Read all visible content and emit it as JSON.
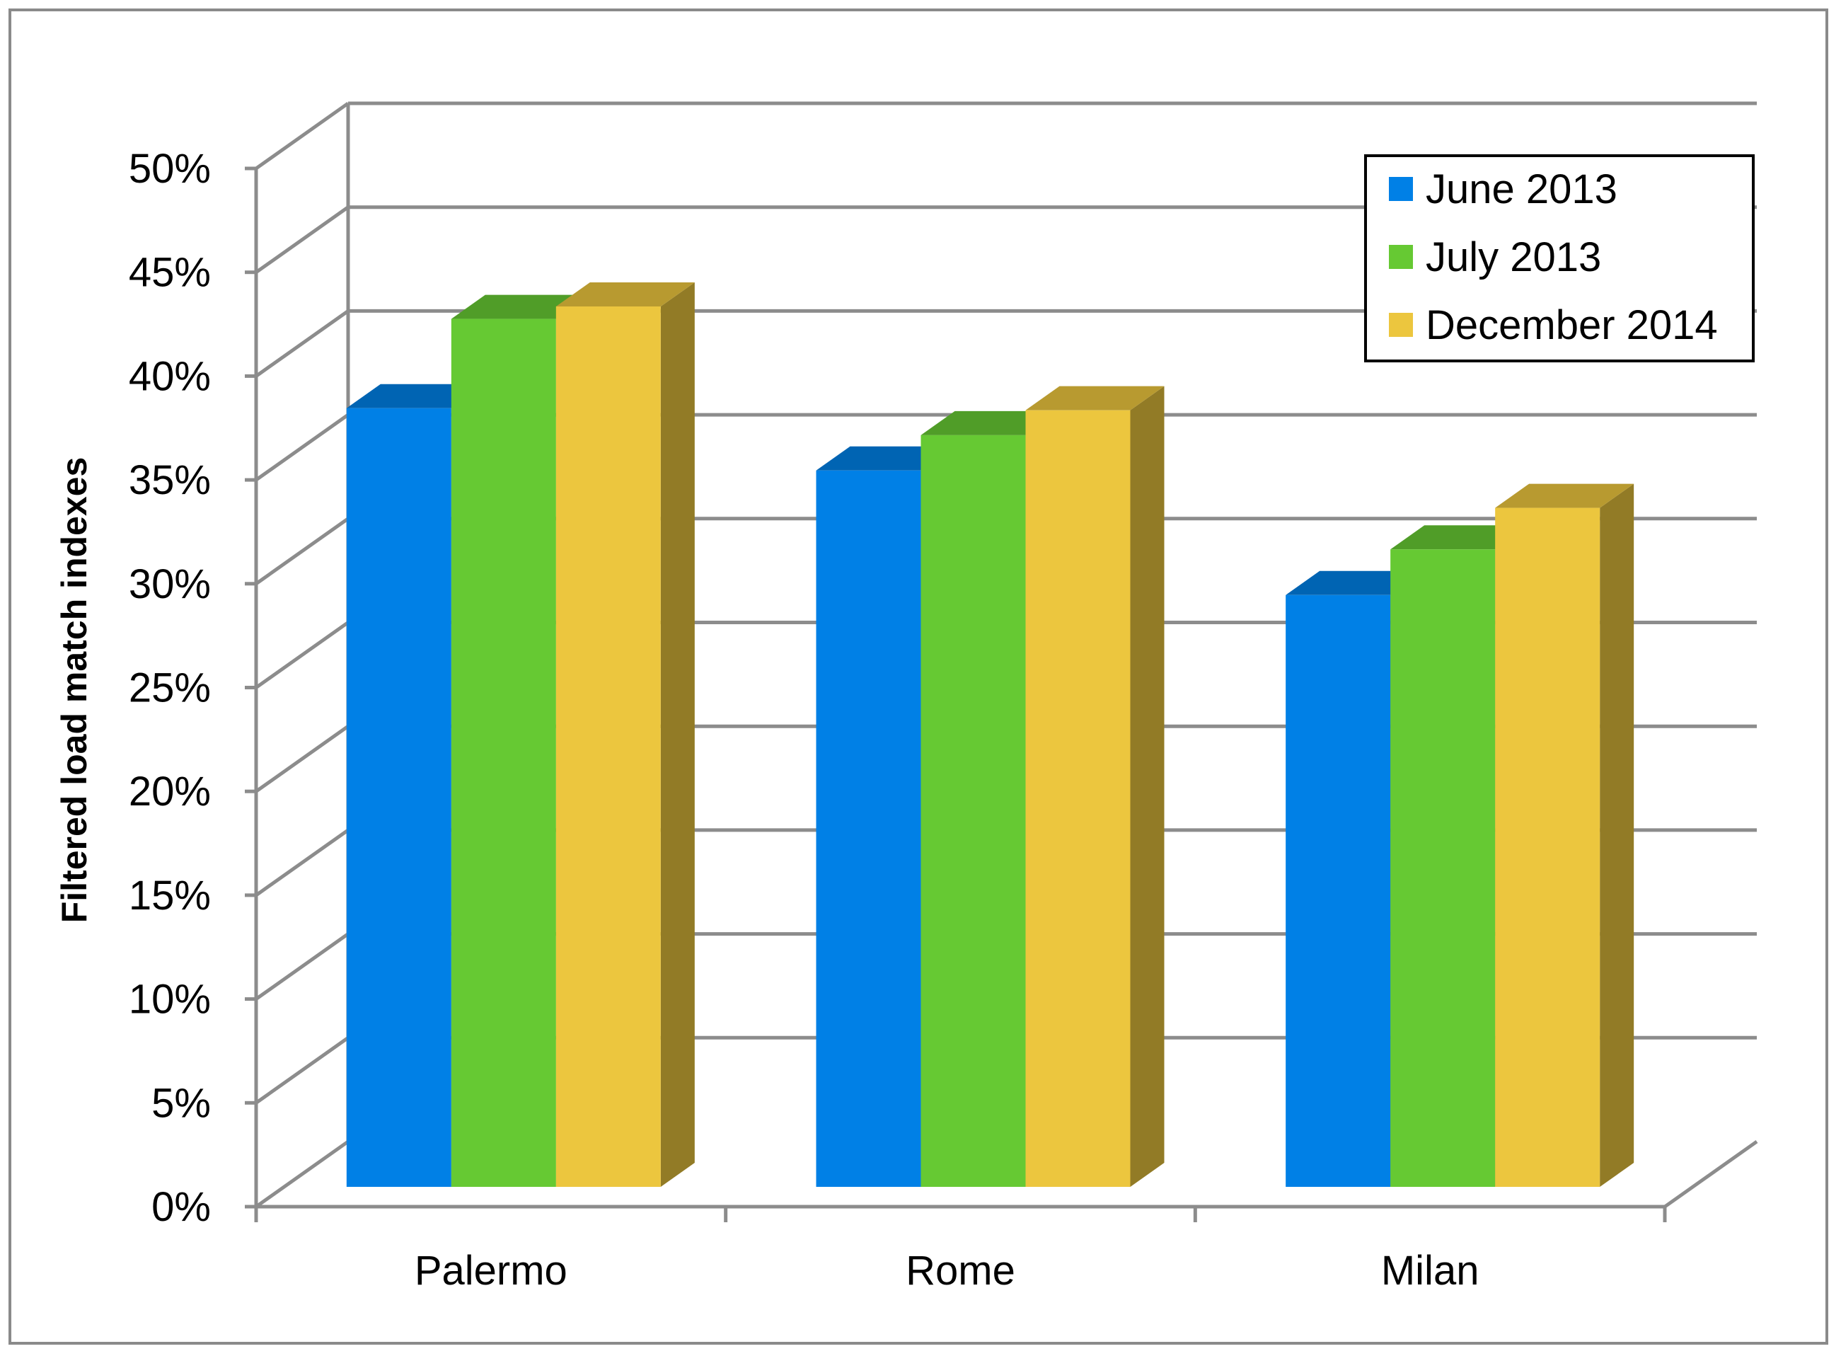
{
  "chart_data": {
    "type": "bar",
    "title": "",
    "xlabel": "",
    "ylabel": "Filtered load match indexes",
    "categories": [
      "Palermo",
      "Rome",
      "Milan"
    ],
    "series": [
      {
        "name": "June 2013",
        "values": [
          37.5,
          34.5,
          28.5
        ],
        "color": "#0080e6"
      },
      {
        "name": "July 2013",
        "values": [
          41.8,
          36.2,
          30.7
        ],
        "color": "#66c933"
      },
      {
        "name": "December 2014",
        "values": [
          42.4,
          37.4,
          32.7
        ],
        "color": "#ecc63e"
      }
    ],
    "ylim": [
      0,
      50
    ],
    "yticks": [
      "0%",
      "5%",
      "10%",
      "15%",
      "20%",
      "25%",
      "30%",
      "35%",
      "40%",
      "45%",
      "50%"
    ],
    "grid": true,
    "legend": "top-right",
    "style": "3d-column"
  }
}
